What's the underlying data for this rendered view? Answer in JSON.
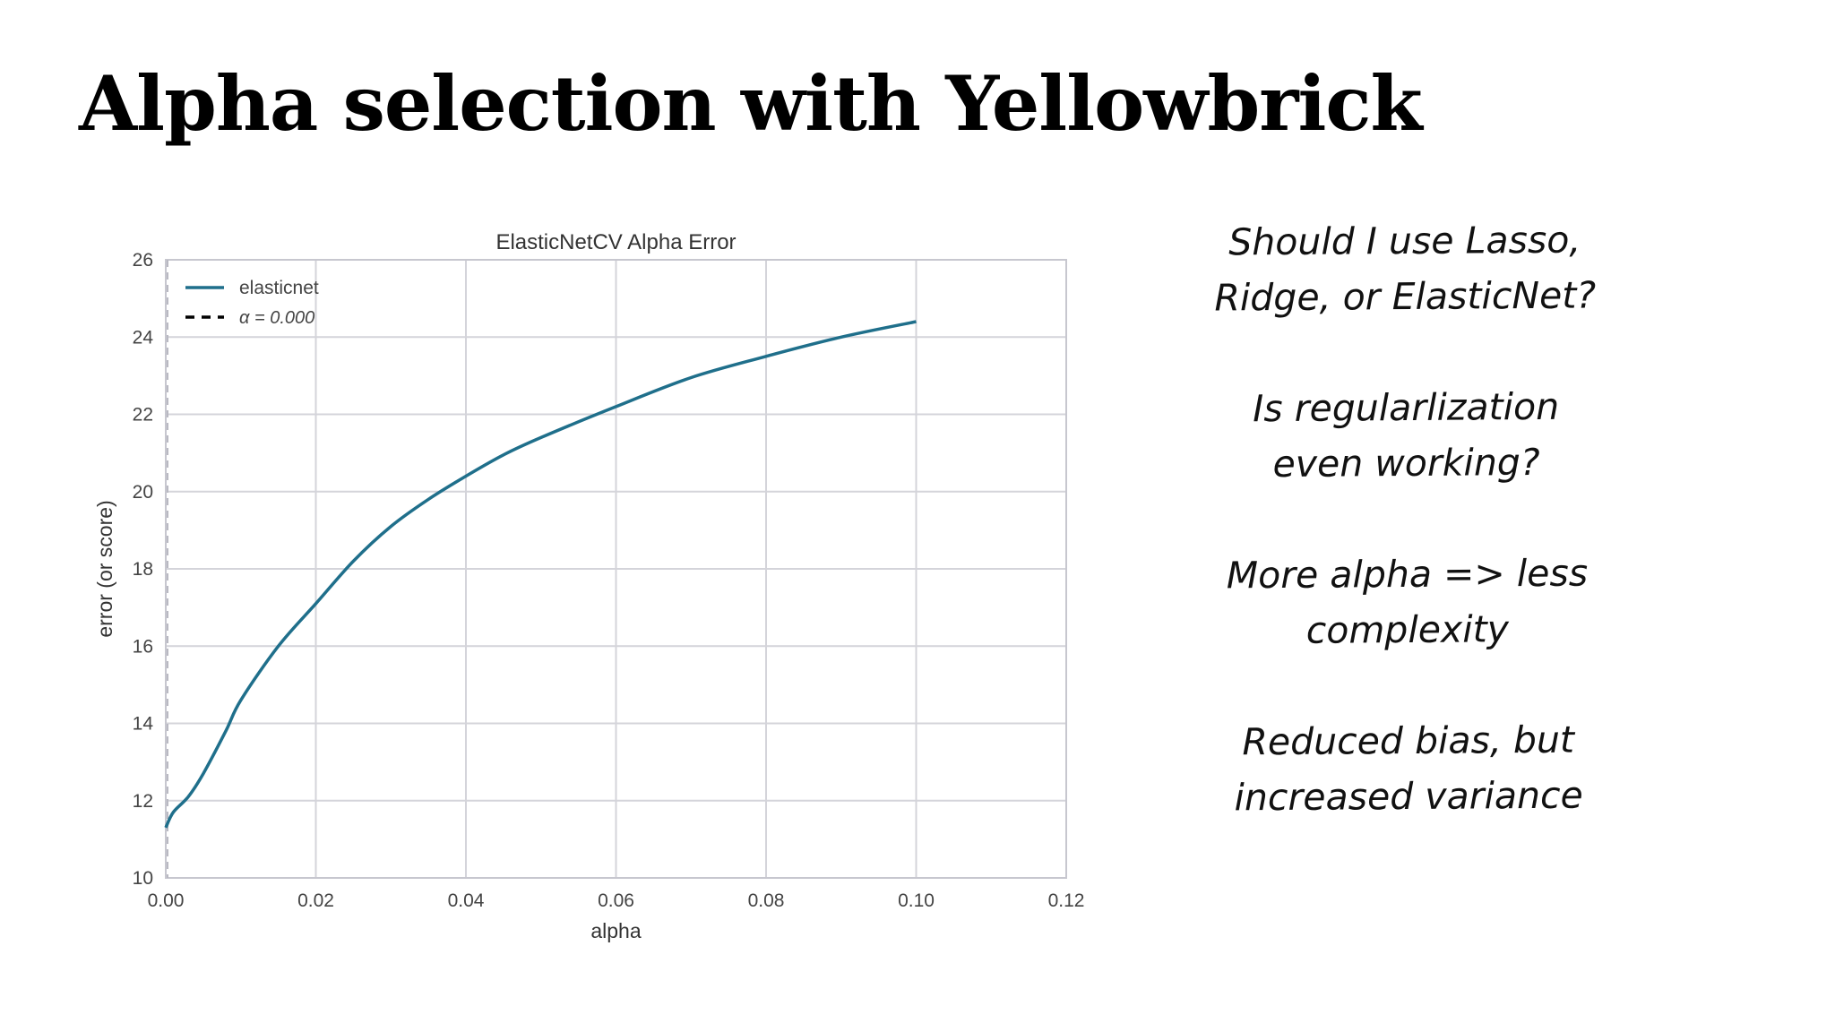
{
  "slide": {
    "title": "Alpha selection with Yellowbrick"
  },
  "notes": [
    "Should I use Lasso,\nRidge, or ElasticNet?",
    "Is regularlization\neven working?",
    "More alpha => less\ncomplexity",
    "Reduced bias, but\nincreased variance"
  ],
  "chart_data": {
    "type": "line",
    "title": "ElasticNetCV Alpha Error",
    "xlabel": "alpha",
    "ylabel": "error (or score)",
    "xlim": [
      0,
      0.12
    ],
    "ylim": [
      10,
      26
    ],
    "x_ticks": [
      "0.00",
      "0.02",
      "0.04",
      "0.06",
      "0.08",
      "0.10",
      "0.12"
    ],
    "y_ticks": [
      "10",
      "12",
      "14",
      "16",
      "18",
      "20",
      "22",
      "24",
      "26"
    ],
    "grid": true,
    "legend": {
      "placement": "top-left",
      "entries": [
        "elasticnet",
        "α = 0.000"
      ]
    },
    "series": [
      {
        "name": "elasticnet",
        "color": "#1f6f8b",
        "x": [
          0,
          0.001,
          0.003,
          0.005,
          0.008,
          0.01,
          0.015,
          0.02,
          0.025,
          0.03,
          0.035,
          0.04,
          0.045,
          0.05,
          0.06,
          0.07,
          0.08,
          0.09,
          0.1
        ],
        "y": [
          11.3,
          11.7,
          12.1,
          12.7,
          13.8,
          14.6,
          16.0,
          17.1,
          18.2,
          19.1,
          19.8,
          20.4,
          20.95,
          21.4,
          22.2,
          22.95,
          23.5,
          24.0,
          24.4
        ]
      }
    ],
    "vline": {
      "name": "α = 0.000",
      "x": 0.0,
      "color": "#000000",
      "style": "dashed"
    }
  }
}
